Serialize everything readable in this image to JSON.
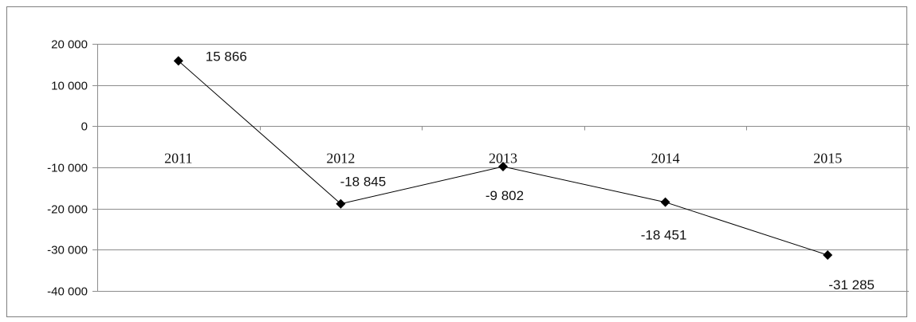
{
  "chart_data": {
    "type": "line",
    "title": "",
    "xlabel": "",
    "ylabel": "",
    "categories": [
      "2011",
      "2012",
      "2013",
      "2014",
      "2015"
    ],
    "series": [
      {
        "values": [
          15866,
          -18845,
          -9802,
          -18451,
          -31285
        ]
      }
    ],
    "data_labels": [
      "15 866",
      "-18 845",
      "-9 802",
      "-18 451",
      "-31 285"
    ],
    "ylim": [
      -40000,
      20000
    ],
    "yticks": [
      20000,
      10000,
      0,
      -10000,
      -20000,
      -30000,
      -40000
    ],
    "ytick_labels": [
      "20 000",
      "10 000",
      "0",
      "-10 000",
      "-20 000",
      "-30 000",
      "-40 000"
    ],
    "grid": true,
    "legend": "none",
    "marker": "diamond",
    "line_color": "#000000"
  }
}
